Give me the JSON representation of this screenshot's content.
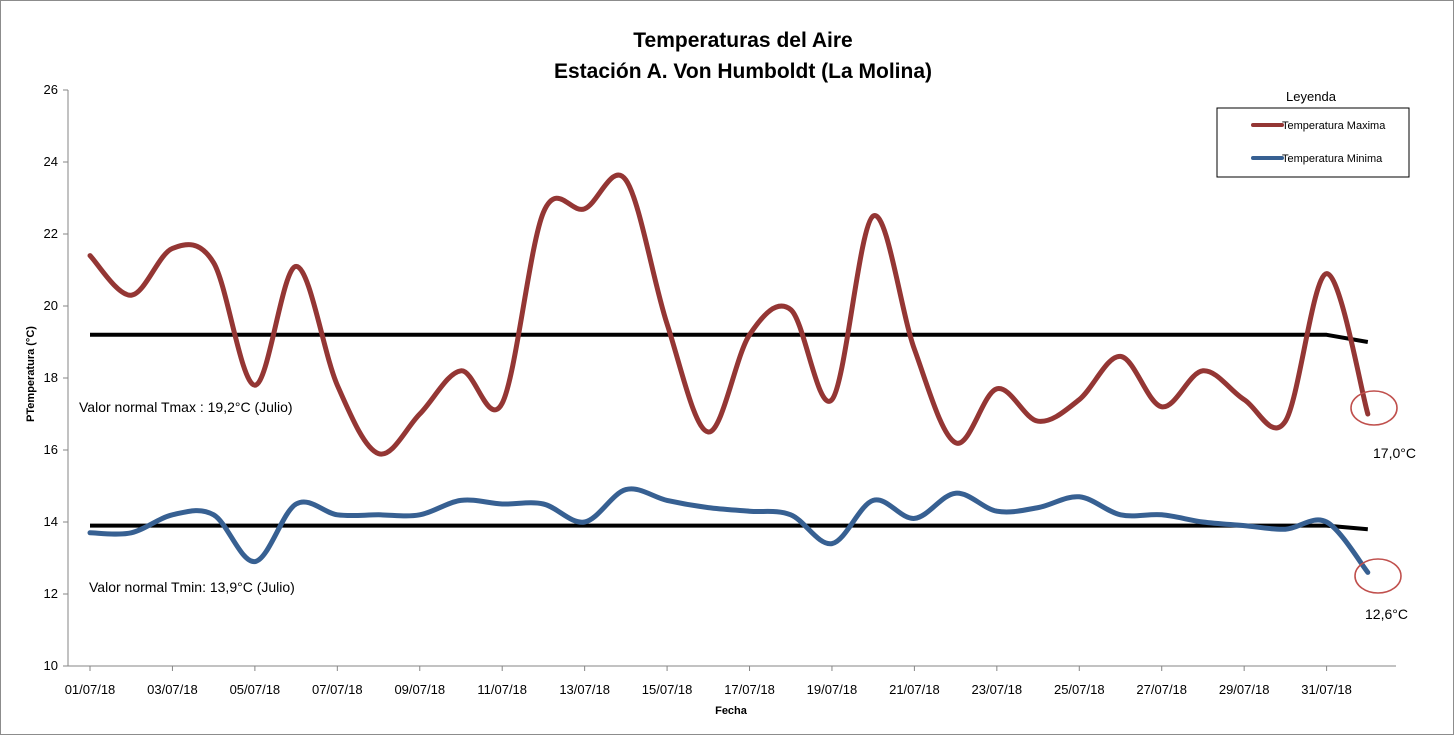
{
  "chart_data": {
    "type": "line",
    "title_line1": "Temperaturas del Aire",
    "title_line2": "Estación A. Von Humboldt (La Molina)",
    "xlabel": "Fecha",
    "ylabel": "PTemperatura (°C)",
    "ylim": [
      10,
      26
    ],
    "yticks": [
      10,
      12,
      14,
      16,
      18,
      20,
      22,
      24,
      26
    ],
    "x_tick_labels": [
      "01/07/18",
      "03/07/18",
      "05/07/18",
      "07/07/18",
      "09/07/18",
      "11/07/18",
      "13/07/18",
      "15/07/18",
      "17/07/18",
      "19/07/18",
      "21/07/18",
      "23/07/18",
      "25/07/18",
      "27/07/18",
      "29/07/18",
      "31/07/18"
    ],
    "dates": [
      "01/07/18",
      "02/07/18",
      "03/07/18",
      "04/07/18",
      "05/07/18",
      "06/07/18",
      "07/07/18",
      "08/07/18",
      "09/07/18",
      "10/07/18",
      "11/07/18",
      "12/07/18",
      "13/07/18",
      "14/07/18",
      "15/07/18",
      "16/07/18",
      "17/07/18",
      "18/07/18",
      "19/07/18",
      "20/07/18",
      "21/07/18",
      "22/07/18",
      "23/07/18",
      "24/07/18",
      "25/07/18",
      "26/07/18",
      "27/07/18",
      "28/07/18",
      "29/07/18",
      "30/07/18",
      "31/07/18",
      "01/08/18"
    ],
    "series": [
      {
        "name": "Temperatura Maxima",
        "color": "#943634",
        "values": [
          21.4,
          20.3,
          21.6,
          21.2,
          17.8,
          21.1,
          17.8,
          15.9,
          17.0,
          18.2,
          17.3,
          22.6,
          22.7,
          23.5,
          19.5,
          16.5,
          19.2,
          19.9,
          17.4,
          22.5,
          18.8,
          16.2,
          17.7,
          16.8,
          17.4,
          18.6,
          17.2,
          18.2,
          17.4,
          16.8,
          20.9,
          17.0
        ]
      },
      {
        "name": "Temperatura Minima",
        "color": "#376092",
        "values": [
          13.7,
          13.7,
          14.2,
          14.2,
          12.9,
          14.5,
          14.2,
          14.2,
          14.2,
          14.6,
          14.5,
          14.5,
          14.0,
          14.9,
          14.6,
          14.4,
          14.3,
          14.2,
          13.4,
          14.6,
          14.1,
          14.8,
          14.3,
          14.4,
          14.7,
          14.2,
          14.2,
          14.0,
          13.9,
          13.8,
          14.0,
          12.6
        ]
      }
    ],
    "normal_lines": [
      {
        "values": [
          19.2,
          19.2,
          19.2,
          19.2,
          19.2,
          19.2,
          19.2,
          19.2,
          19.2,
          19.2,
          19.2,
          19.2,
          19.2,
          19.2,
          19.2,
          19.2,
          19.2,
          19.2,
          19.2,
          19.2,
          19.2,
          19.2,
          19.2,
          19.2,
          19.2,
          19.2,
          19.2,
          19.2,
          19.2,
          19.2,
          19.2,
          19.0
        ],
        "color": "#000000"
      },
      {
        "values": [
          13.9,
          13.9,
          13.9,
          13.9,
          13.9,
          13.9,
          13.9,
          13.9,
          13.9,
          13.9,
          13.9,
          13.9,
          13.9,
          13.9,
          13.9,
          13.9,
          13.9,
          13.9,
          13.9,
          13.9,
          13.9,
          13.9,
          13.9,
          13.9,
          13.9,
          13.9,
          13.9,
          13.9,
          13.9,
          13.9,
          13.9,
          13.8
        ],
        "color": "#000000"
      }
    ],
    "annotations": {
      "normal_tmax": "Valor normal Tmax :  19,2°C (Julio)",
      "normal_tmin": "Valor normal Tmin: 13,9°C (Julio)",
      "last_max": "17,0°C",
      "last_min": "12,6°C"
    },
    "highlight_color": "#c0504d",
    "legend": {
      "title": "Leyenda",
      "placement": "top-right"
    },
    "grid": false
  }
}
